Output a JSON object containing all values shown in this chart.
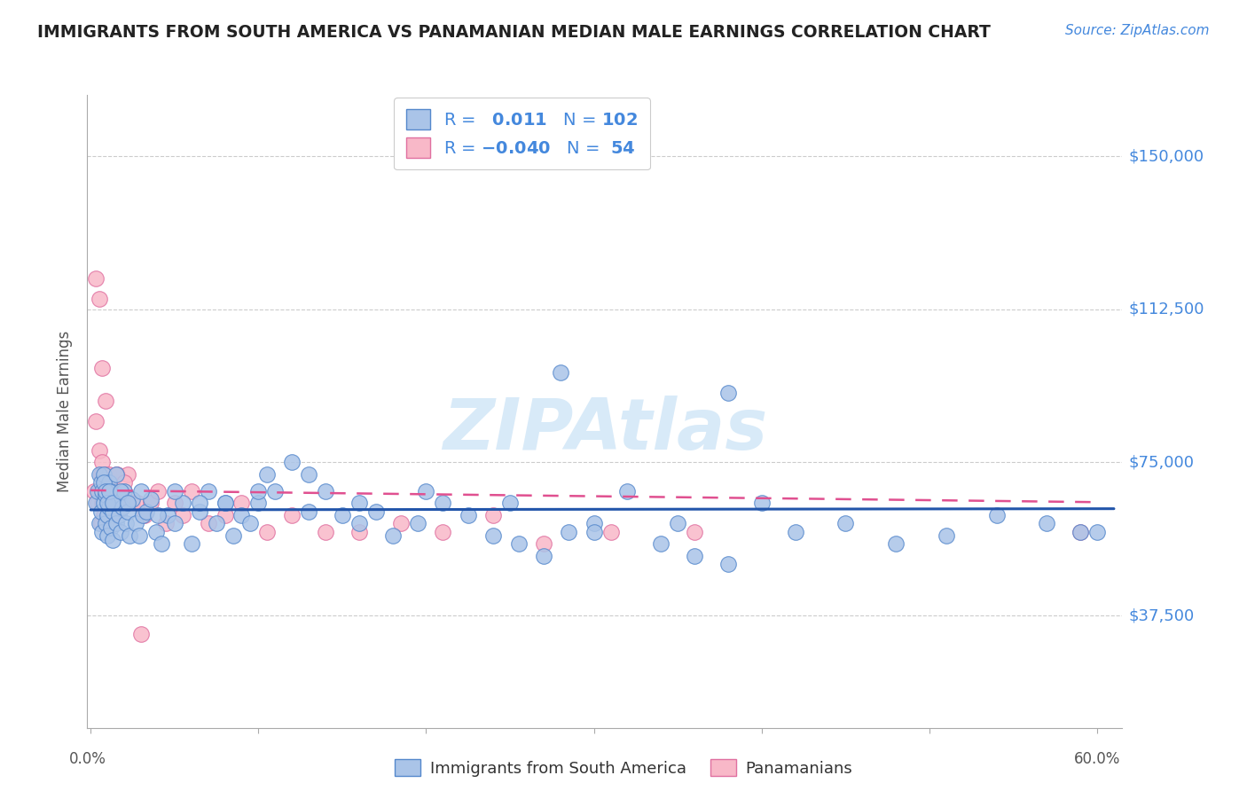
{
  "title": "IMMIGRANTS FROM SOUTH AMERICA VS PANAMANIAN MEDIAN MALE EARNINGS CORRELATION CHART",
  "source": "Source: ZipAtlas.com",
  "ylabel": "Median Male Earnings",
  "ytick_values": [
    37500,
    75000,
    112500,
    150000
  ],
  "ytick_labels": [
    "$37,500",
    "$75,000",
    "$112,500",
    "$150,000"
  ],
  "ymin": 10000,
  "ymax": 165000,
  "xmin": -0.002,
  "xmax": 0.615,
  "r_blue": 0.011,
  "n_blue": 102,
  "r_pink": -0.04,
  "n_pink": 54,
  "legend_label_blue": "Immigrants from South America",
  "legend_label_pink": "Panamanians",
  "watermark": "ZIPAtlas",
  "blue_scatter_x": [
    0.003,
    0.004,
    0.005,
    0.005,
    0.006,
    0.006,
    0.007,
    0.007,
    0.008,
    0.008,
    0.009,
    0.009,
    0.01,
    0.01,
    0.011,
    0.011,
    0.012,
    0.012,
    0.013,
    0.013,
    0.014,
    0.015,
    0.016,
    0.017,
    0.018,
    0.019,
    0.02,
    0.021,
    0.022,
    0.023,
    0.025,
    0.027,
    0.029,
    0.031,
    0.033,
    0.036,
    0.039,
    0.042,
    0.046,
    0.05,
    0.055,
    0.06,
    0.065,
    0.07,
    0.075,
    0.08,
    0.085,
    0.09,
    0.095,
    0.1,
    0.105,
    0.11,
    0.12,
    0.13,
    0.14,
    0.15,
    0.16,
    0.17,
    0.18,
    0.195,
    0.21,
    0.225,
    0.24,
    0.255,
    0.27,
    0.285,
    0.3,
    0.32,
    0.34,
    0.36,
    0.38,
    0.4,
    0.42,
    0.45,
    0.48,
    0.51,
    0.54,
    0.57,
    0.59,
    0.6,
    0.008,
    0.009,
    0.01,
    0.011,
    0.013,
    0.015,
    0.018,
    0.022,
    0.03,
    0.04,
    0.05,
    0.065,
    0.08,
    0.1,
    0.13,
    0.16,
    0.2,
    0.25,
    0.3,
    0.35,
    0.28,
    0.38
  ],
  "blue_scatter_y": [
    65000,
    68000,
    72000,
    60000,
    70000,
    63000,
    68000,
    58000,
    65000,
    72000,
    60000,
    67000,
    62000,
    57000,
    70000,
    64000,
    68000,
    59000,
    63000,
    56000,
    65000,
    60000,
    67000,
    62000,
    58000,
    64000,
    68000,
    60000,
    63000,
    57000,
    66000,
    60000,
    57000,
    62000,
    63000,
    66000,
    58000,
    55000,
    62000,
    60000,
    65000,
    55000,
    63000,
    68000,
    60000,
    65000,
    57000,
    62000,
    60000,
    65000,
    72000,
    68000,
    75000,
    72000,
    68000,
    62000,
    60000,
    63000,
    57000,
    60000,
    65000,
    62000,
    57000,
    55000,
    52000,
    58000,
    60000,
    68000,
    55000,
    52000,
    50000,
    65000,
    58000,
    60000,
    55000,
    57000,
    62000,
    60000,
    58000,
    58000,
    70000,
    68000,
    65000,
    68000,
    65000,
    72000,
    68000,
    65000,
    68000,
    62000,
    68000,
    65000,
    65000,
    68000,
    63000,
    65000,
    68000,
    65000,
    58000,
    60000,
    97000,
    92000
  ],
  "pink_scatter_x": [
    0.002,
    0.003,
    0.004,
    0.005,
    0.005,
    0.006,
    0.006,
    0.007,
    0.007,
    0.008,
    0.008,
    0.009,
    0.009,
    0.01,
    0.011,
    0.012,
    0.013,
    0.014,
    0.015,
    0.016,
    0.017,
    0.018,
    0.02,
    0.022,
    0.025,
    0.028,
    0.032,
    0.036,
    0.04,
    0.045,
    0.05,
    0.055,
    0.06,
    0.07,
    0.08,
    0.09,
    0.105,
    0.12,
    0.14,
    0.16,
    0.185,
    0.21,
    0.24,
    0.27,
    0.31,
    0.36,
    0.59,
    0.003,
    0.005,
    0.007,
    0.009,
    0.015,
    0.02,
    0.03
  ],
  "pink_scatter_y": [
    68000,
    85000,
    65000,
    78000,
    68000,
    72000,
    60000,
    75000,
    65000,
    70000,
    62000,
    72000,
    68000,
    65000,
    72000,
    68000,
    62000,
    65000,
    68000,
    72000,
    65000,
    68000,
    68000,
    72000,
    65000,
    65000,
    62000,
    65000,
    68000,
    60000,
    65000,
    62000,
    68000,
    60000,
    62000,
    65000,
    58000,
    62000,
    58000,
    58000,
    60000,
    58000,
    62000,
    55000,
    58000,
    58000,
    58000,
    120000,
    115000,
    98000,
    90000,
    72000,
    70000,
    33000
  ],
  "blue_color": "#aac4e8",
  "blue_edge_color": "#5588cc",
  "blue_line_color": "#2255aa",
  "pink_color": "#f8b8c8",
  "pink_edge_color": "#e070a0",
  "pink_line_color": "#e05090",
  "grid_color": "#cccccc",
  "title_color": "#222222",
  "axis_label_color": "#555555",
  "right_tick_color": "#4488dd",
  "watermark_color": "#d8eaf8",
  "source_color": "#4488dd"
}
